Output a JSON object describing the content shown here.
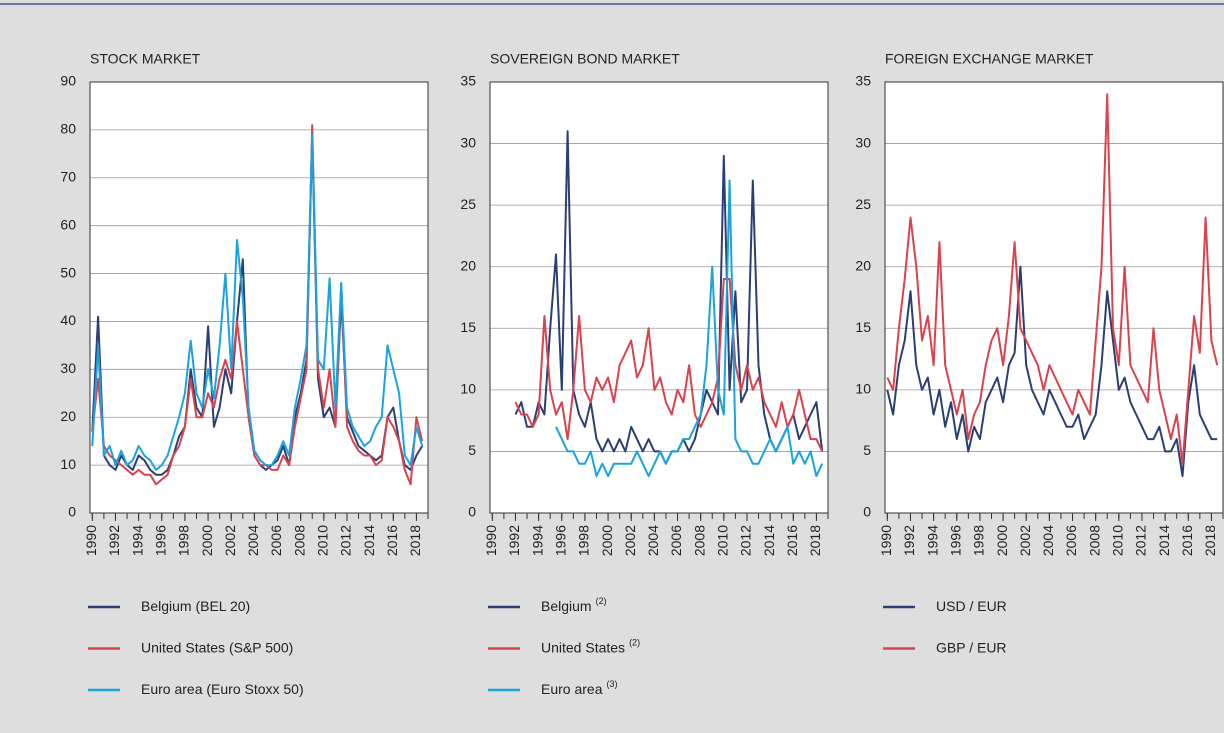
{
  "chart_data": [
    {
      "type": "line",
      "title": "STOCK MARKET",
      "x": [
        1990,
        1990.5,
        1991,
        1991.5,
        1992,
        1992.5,
        1993,
        1993.5,
        1994,
        1994.5,
        1995,
        1995.5,
        1996,
        1996.5,
        1997,
        1997.5,
        1998,
        1998.5,
        1999,
        1999.5,
        2000,
        2000.5,
        2001,
        2001.5,
        2002,
        2002.5,
        2003,
        2003.5,
        2004,
        2004.5,
        2005,
        2005.5,
        2006,
        2006.5,
        2007,
        2007.5,
        2008,
        2008.5,
        2009,
        2009.5,
        2010,
        2010.5,
        2011,
        2011.5,
        2012,
        2012.5,
        2013,
        2013.5,
        2014,
        2014.5,
        2015,
        2015.5,
        2016,
        2016.5,
        2017,
        2017.5,
        2018,
        2018.5
      ],
      "xlim": [
        1989.8,
        2019
      ],
      "xticks": [
        1990,
        1992,
        1994,
        1996,
        1998,
        2000,
        2002,
        2004,
        2006,
        2008,
        2010,
        2012,
        2014,
        2016,
        2018
      ],
      "ylim": [
        0,
        90
      ],
      "yticks": [
        0,
        10,
        20,
        30,
        40,
        50,
        60,
        70,
        80,
        90
      ],
      "grid": true,
      "series": [
        {
          "name": "Belgium (BEL 20)",
          "color": "#2b3f73",
          "values": [
            17,
            41,
            12,
            10,
            9,
            12,
            10,
            9,
            12,
            11,
            9,
            8,
            8,
            9,
            12,
            16,
            18,
            30,
            22,
            20,
            39,
            18,
            22,
            30,
            25,
            40,
            53,
            20,
            12,
            10,
            9,
            10,
            11,
            14,
            10,
            20,
            25,
            32,
            79,
            28,
            20,
            22,
            18,
            45,
            20,
            17,
            14,
            13,
            12,
            11,
            12,
            20,
            22,
            15,
            10,
            9,
            12,
            14
          ]
        },
        {
          "name": "United States (S&P 500)",
          "color": "#d9434f",
          "values": [
            17,
            28,
            14,
            12,
            11,
            10,
            9,
            8,
            9,
            8,
            8,
            6,
            7,
            8,
            12,
            14,
            18,
            28,
            20,
            20,
            25,
            22,
            28,
            32,
            28,
            40,
            30,
            20,
            12,
            10,
            10,
            9,
            9,
            12,
            10,
            18,
            24,
            30,
            81,
            30,
            22,
            30,
            18,
            48,
            18,
            15,
            13,
            12,
            12,
            10,
            11,
            20,
            18,
            15,
            9,
            6,
            20,
            15
          ]
        },
        {
          "name": "Euro area (Euro Stoxx 50)",
          "color": "#1aa3dc",
          "values": [
            14,
            35,
            12,
            14,
            10,
            13,
            10,
            11,
            14,
            12,
            11,
            9,
            10,
            12,
            16,
            20,
            25,
            36,
            25,
            22,
            30,
            24,
            35,
            50,
            30,
            57,
            45,
            22,
            13,
            11,
            10,
            10,
            12,
            15,
            12,
            22,
            28,
            35,
            79,
            32,
            30,
            49,
            22,
            48,
            22,
            18,
            16,
            14,
            15,
            18,
            20,
            35,
            30,
            25,
            12,
            10,
            18,
            14
          ]
        }
      ]
    },
    {
      "type": "line",
      "title": "SOVEREIGN BOND MARKET",
      "x": [
        1990,
        1990.5,
        1991,
        1991.5,
        1992,
        1992.5,
        1993,
        1993.5,
        1994,
        1994.5,
        1995,
        1995.5,
        1996,
        1996.5,
        1997,
        1997.5,
        1998,
        1998.5,
        1999,
        1999.5,
        2000,
        2000.5,
        2001,
        2001.5,
        2002,
        2002.5,
        2003,
        2003.5,
        2004,
        2004.5,
        2005,
        2005.5,
        2006,
        2006.5,
        2007,
        2007.5,
        2008,
        2008.5,
        2009,
        2009.5,
        2010,
        2010.5,
        2011,
        2011.5,
        2012,
        2012.5,
        2013,
        2013.5,
        2014,
        2014.5,
        2015,
        2015.5,
        2016,
        2016.5,
        2017,
        2017.5,
        2018,
        2018.5
      ],
      "xlim": [
        1989.8,
        2019
      ],
      "xticks": [
        1990,
        1992,
        1994,
        1996,
        1998,
        2000,
        2002,
        2004,
        2006,
        2008,
        2010,
        2012,
        2014,
        2016,
        2018
      ],
      "ylim": [
        0,
        35
      ],
      "yticks": [
        0,
        5,
        10,
        15,
        20,
        25,
        30,
        35
      ],
      "grid": true,
      "series": [
        {
          "name": "Belgium",
          "footnote": "(2)",
          "color": "#2b3f73",
          "values": [
            null,
            null,
            null,
            null,
            8,
            9,
            7,
            7,
            9,
            8,
            15,
            21,
            10,
            31,
            10,
            8,
            7,
            9,
            6,
            5,
            6,
            5,
            6,
            5,
            7,
            6,
            5,
            6,
            5,
            5,
            4,
            5,
            5,
            6,
            5,
            6,
            8,
            10,
            9,
            8,
            29,
            10,
            18,
            9,
            10,
            27,
            12,
            8,
            6,
            5,
            6,
            7,
            8,
            6,
            7,
            8,
            9,
            5
          ]
        },
        {
          "name": "United States",
          "footnote": "(2)",
          "color": "#d9434f",
          "values": [
            null,
            null,
            null,
            null,
            9,
            8,
            8,
            7,
            8,
            16,
            10,
            8,
            9,
            6,
            10,
            16,
            10,
            9,
            11,
            10,
            11,
            9,
            12,
            13,
            14,
            11,
            12,
            15,
            10,
            11,
            9,
            8,
            10,
            9,
            12,
            8,
            7,
            8,
            9,
            11,
            19,
            19,
            12,
            10,
            12,
            10,
            11,
            9,
            8,
            7,
            9,
            7,
            8,
            10,
            8,
            6,
            6,
            5
          ]
        },
        {
          "name": "Euro area",
          "footnote": "(3)",
          "color": "#1aa3dc",
          "values": [
            null,
            null,
            null,
            null,
            null,
            null,
            null,
            null,
            null,
            null,
            null,
            7,
            6,
            5,
            5,
            4,
            4,
            5,
            3,
            4,
            3,
            4,
            4,
            4,
            4,
            5,
            4,
            3,
            4,
            5,
            4,
            5,
            5,
            6,
            6,
            7,
            8,
            12,
            20,
            10,
            8,
            27,
            6,
            5,
            5,
            4,
            4,
            5,
            6,
            5,
            6,
            7,
            4,
            5,
            4,
            5,
            3,
            4
          ]
        }
      ]
    },
    {
      "type": "line",
      "title": "FOREIGN EXCHANGE MARKET",
      "x": [
        1990,
        1990.5,
        1991,
        1991.5,
        1992,
        1992.5,
        1993,
        1993.5,
        1994,
        1994.5,
        1995,
        1995.5,
        1996,
        1996.5,
        1997,
        1997.5,
        1998,
        1998.5,
        1999,
        1999.5,
        2000,
        2000.5,
        2001,
        2001.5,
        2002,
        2002.5,
        2003,
        2003.5,
        2004,
        2004.5,
        2005,
        2005.5,
        2006,
        2006.5,
        2007,
        2007.5,
        2008,
        2008.5,
        2009,
        2009.5,
        2010,
        2010.5,
        2011,
        2011.5,
        2012,
        2012.5,
        2013,
        2013.5,
        2014,
        2014.5,
        2015,
        2015.5,
        2016,
        2016.5,
        2017,
        2017.5,
        2018,
        2018.5
      ],
      "xlim": [
        1989.8,
        2019
      ],
      "xticks": [
        1990,
        1992,
        1994,
        1996,
        1998,
        2000,
        2002,
        2004,
        2006,
        2008,
        2010,
        2012,
        2014,
        2016,
        2018
      ],
      "ylim": [
        0,
        35
      ],
      "yticks": [
        0,
        5,
        10,
        15,
        20,
        25,
        30,
        35
      ],
      "grid": true,
      "series": [
        {
          "name": "USD / EUR",
          "color": "#2b3f73",
          "values": [
            10,
            8,
            12,
            14,
            18,
            12,
            10,
            11,
            8,
            10,
            7,
            9,
            6,
            8,
            5,
            7,
            6,
            9,
            10,
            11,
            9,
            12,
            13,
            20,
            12,
            10,
            9,
            8,
            10,
            9,
            8,
            7,
            7,
            8,
            6,
            7,
            8,
            12,
            18,
            14,
            10,
            11,
            9,
            8,
            7,
            6,
            6,
            7,
            5,
            5,
            6,
            3,
            9,
            12,
            8,
            7,
            6,
            6
          ]
        },
        {
          "name": "GBP / EUR",
          "color": "#d9434f",
          "values": [
            11,
            10,
            15,
            19,
            24,
            20,
            14,
            16,
            12,
            22,
            12,
            10,
            8,
            10,
            6,
            8,
            9,
            12,
            14,
            15,
            12,
            16,
            22,
            15,
            14,
            13,
            12,
            10,
            12,
            11,
            10,
            9,
            8,
            10,
            9,
            8,
            14,
            20,
            34,
            15,
            12,
            20,
            12,
            11,
            10,
            9,
            15,
            10,
            8,
            6,
            8,
            4,
            10,
            16,
            13,
            24,
            14,
            12
          ]
        }
      ]
    }
  ]
}
